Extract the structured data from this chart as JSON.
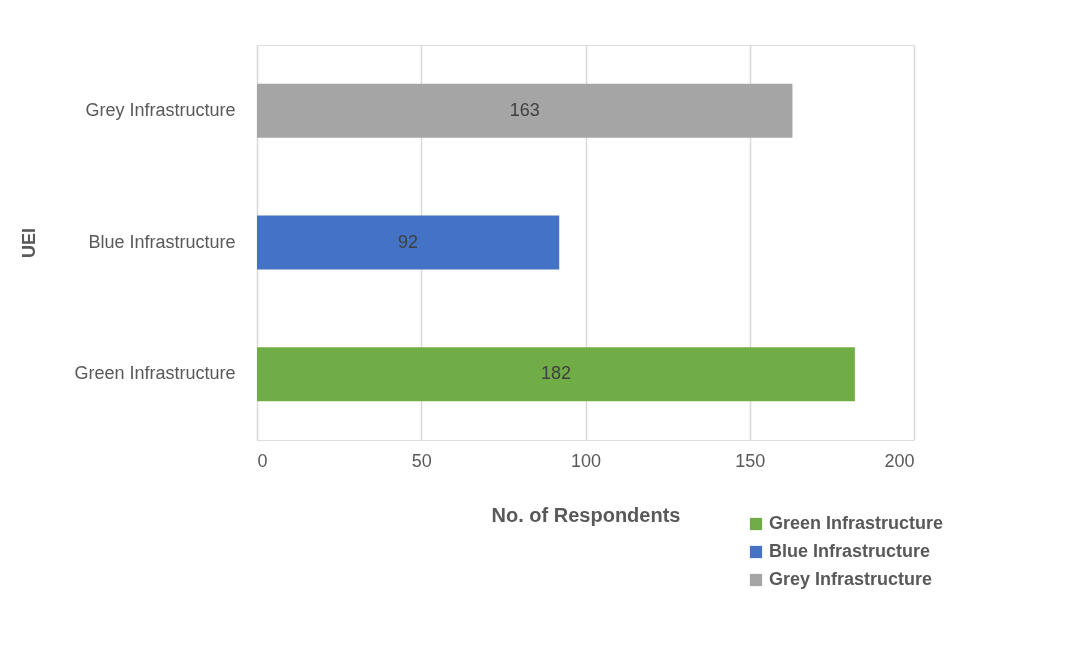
{
  "chart_data": {
    "type": "bar",
    "orientation": "horizontal",
    "ylabel": "UEI",
    "xlabel": "No. of Respondents",
    "categories": [
      "Grey Infrastructure",
      "Blue Infrastructure",
      "Green Infrastructure"
    ],
    "series": [
      {
        "name": "Green Infrastructure",
        "color": "#70ad47",
        "values": [
          null,
          null,
          182
        ]
      },
      {
        "name": "Blue Infrastructure",
        "color": "#4472c4",
        "values": [
          null,
          92,
          null
        ]
      },
      {
        "name": "Grey Infrastructure",
        "color": "#a5a5a5",
        "values": [
          163,
          null,
          null
        ]
      }
    ],
    "xlim": [
      0,
      200
    ],
    "xticks": [
      0,
      50,
      100,
      150,
      200
    ],
    "grid": "x",
    "data_labels": true,
    "legend": "bottom right"
  }
}
